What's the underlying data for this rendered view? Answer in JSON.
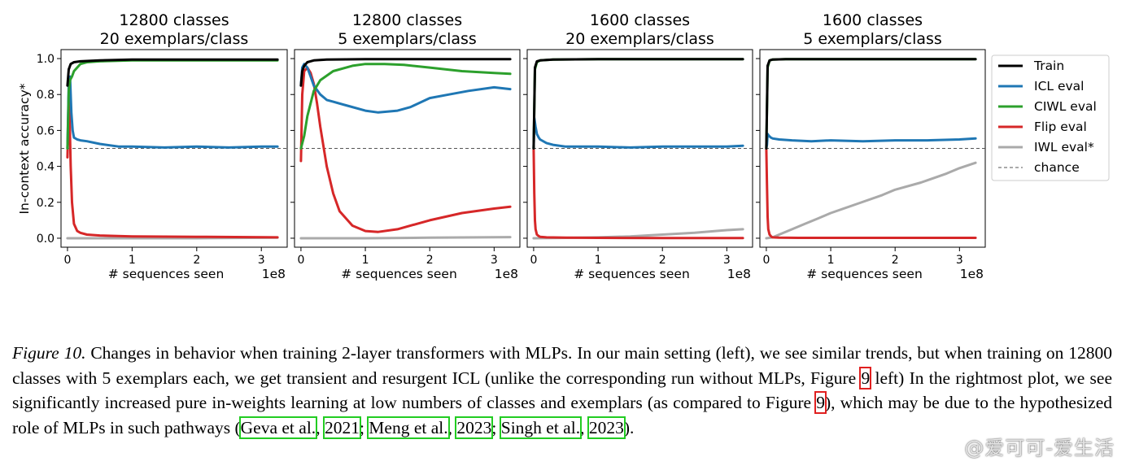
{
  "chart_data": [
    {
      "type": "line",
      "title": [
        "12800 classes",
        "20 exemplars/class"
      ],
      "xlabel": "# sequences seen",
      "x_offset_label": "1e8",
      "ylabel": "In-context accuracy*",
      "xlim": [
        -0.1,
        3.4
      ],
      "ylim": [
        -0.05,
        1.05
      ],
      "xticks": [
        "0",
        "1",
        "2",
        "3"
      ],
      "yticks": [
        "0.0",
        "0.2",
        "0.4",
        "0.6",
        "0.8",
        "1.0"
      ],
      "chance": 0.5,
      "series": [
        {
          "name": "Train",
          "x": [
            0.0,
            0.02,
            0.05,
            0.1,
            0.2,
            0.5,
            1.0,
            2.0,
            3.0,
            3.25
          ],
          "y": [
            0.85,
            0.94,
            0.97,
            0.98,
            0.985,
            0.99,
            0.995,
            0.995,
            0.995,
            0.995
          ]
        },
        {
          "name": "ICL eval",
          "x": [
            0.0,
            0.02,
            0.04,
            0.06,
            0.08,
            0.1,
            0.15,
            0.2,
            0.3,
            0.5,
            0.8,
            1.0,
            1.5,
            2.0,
            2.5,
            3.0,
            3.25
          ],
          "y": [
            0.5,
            0.86,
            0.9,
            0.7,
            0.6,
            0.56,
            0.55,
            0.545,
            0.54,
            0.525,
            0.51,
            0.51,
            0.505,
            0.51,
            0.505,
            0.51,
            0.51
          ]
        },
        {
          "name": "CIWL eval",
          "x": [
            0.0,
            0.02,
            0.04,
            0.07,
            0.1,
            0.2,
            0.3,
            0.5,
            1.0,
            2.0,
            3.0,
            3.25
          ],
          "y": [
            0.5,
            0.82,
            0.88,
            0.9,
            0.93,
            0.97,
            0.98,
            0.985,
            0.99,
            0.99,
            0.99,
            0.99
          ]
        },
        {
          "name": "Flip eval",
          "x": [
            0.0,
            0.01,
            0.02,
            0.03,
            0.05,
            0.07,
            0.1,
            0.15,
            0.2,
            0.3,
            0.5,
            1.0,
            2.0,
            3.25
          ],
          "y": [
            0.45,
            0.6,
            0.8,
            0.72,
            0.4,
            0.2,
            0.08,
            0.04,
            0.03,
            0.02,
            0.015,
            0.01,
            0.008,
            0.005
          ]
        },
        {
          "name": "IWL eval*",
          "x": [
            0.0,
            1.0,
            2.0,
            3.25
          ],
          "y": [
            0.0,
            0.0,
            0.0,
            0.003
          ]
        }
      ]
    },
    {
      "type": "line",
      "title": [
        "12800 classes",
        "5 exemplars/class"
      ],
      "xlabel": "# sequences seen",
      "x_offset_label": "1e8",
      "xlim": [
        -0.1,
        3.4
      ],
      "ylim": [
        -0.05,
        1.05
      ],
      "xticks": [
        "0",
        "1",
        "2",
        "3"
      ],
      "chance": 0.5,
      "series": [
        {
          "name": "Train",
          "x": [
            0.0,
            0.02,
            0.05,
            0.1,
            0.2,
            0.4,
            1.0,
            2.0,
            3.0,
            3.25
          ],
          "y": [
            0.85,
            0.93,
            0.96,
            0.98,
            0.99,
            0.995,
            0.997,
            0.997,
            0.997,
            0.997
          ]
        },
        {
          "name": "ICL eval",
          "x": [
            0.0,
            0.02,
            0.05,
            0.1,
            0.15,
            0.2,
            0.3,
            0.4,
            0.5,
            0.7,
            1.0,
            1.2,
            1.5,
            1.7,
            2.0,
            2.3,
            2.6,
            3.0,
            3.25
          ],
          "y": [
            0.85,
            0.95,
            0.97,
            0.95,
            0.9,
            0.85,
            0.8,
            0.77,
            0.76,
            0.74,
            0.71,
            0.7,
            0.71,
            0.73,
            0.78,
            0.8,
            0.82,
            0.84,
            0.83
          ]
        },
        {
          "name": "CIWL eval",
          "x": [
            0.0,
            0.05,
            0.1,
            0.2,
            0.3,
            0.5,
            0.8,
            1.0,
            1.3,
            1.6,
            2.0,
            2.5,
            3.0,
            3.25
          ],
          "y": [
            0.5,
            0.57,
            0.68,
            0.82,
            0.88,
            0.93,
            0.96,
            0.97,
            0.97,
            0.965,
            0.95,
            0.93,
            0.92,
            0.915
          ]
        },
        {
          "name": "Flip eval",
          "x": [
            0.0,
            0.02,
            0.05,
            0.1,
            0.15,
            0.2,
            0.25,
            0.3,
            0.4,
            0.5,
            0.6,
            0.8,
            1.0,
            1.2,
            1.5,
            2.0,
            2.5,
            3.0,
            3.25
          ],
          "y": [
            0.43,
            0.8,
            0.93,
            0.95,
            0.92,
            0.86,
            0.75,
            0.62,
            0.4,
            0.25,
            0.15,
            0.07,
            0.04,
            0.035,
            0.05,
            0.1,
            0.14,
            0.165,
            0.175
          ]
        },
        {
          "name": "IWL eval*",
          "x": [
            0.0,
            1.0,
            2.0,
            3.25
          ],
          "y": [
            0.0,
            0.0,
            0.003,
            0.006
          ]
        }
      ]
    },
    {
      "type": "line",
      "title": [
        "1600 classes",
        "20 exemplars/class"
      ],
      "xlabel": "# sequences seen",
      "x_offset_label": "1e8",
      "xlim": [
        -0.1,
        3.4
      ],
      "ylim": [
        -0.05,
        1.05
      ],
      "xticks": [
        "0",
        "1",
        "2",
        "3"
      ],
      "chance": 0.5,
      "series": [
        {
          "name": "Train",
          "x": [
            0.0,
            0.02,
            0.05,
            0.1,
            0.3,
            1.0,
            2.0,
            3.25
          ],
          "y": [
            0.5,
            0.95,
            0.985,
            0.99,
            0.995,
            0.997,
            0.997,
            0.997
          ]
        },
        {
          "name": "ICL eval",
          "x": [
            0.0,
            0.01,
            0.03,
            0.05,
            0.08,
            0.1,
            0.2,
            0.3,
            0.5,
            1.0,
            1.5,
            2.0,
            2.5,
            3.0,
            3.25
          ],
          "y": [
            0.5,
            0.67,
            0.62,
            0.58,
            0.56,
            0.55,
            0.53,
            0.52,
            0.51,
            0.51,
            0.505,
            0.51,
            0.51,
            0.51,
            0.515
          ]
        },
        {
          "name": "CIWL eval",
          "x": [
            0.0,
            0.02,
            0.05,
            0.1,
            0.3,
            1.0,
            2.0,
            3.25
          ],
          "y": [
            0.5,
            0.94,
            0.98,
            0.99,
            0.995,
            0.997,
            0.997,
            0.997
          ]
        },
        {
          "name": "Flip eval",
          "x": [
            0.0,
            0.01,
            0.02,
            0.03,
            0.05,
            0.08,
            0.1,
            0.2,
            0.5,
            1.0,
            2.0,
            3.25
          ],
          "y": [
            0.5,
            0.25,
            0.1,
            0.05,
            0.02,
            0.012,
            0.008,
            0.005,
            0.003,
            0.002,
            0.001,
            0.001
          ]
        },
        {
          "name": "IWL eval*",
          "x": [
            0.0,
            0.5,
            1.0,
            1.5,
            2.0,
            2.5,
            3.0,
            3.25
          ],
          "y": [
            0.0,
            0.002,
            0.005,
            0.01,
            0.02,
            0.03,
            0.045,
            0.05
          ]
        }
      ]
    },
    {
      "type": "line",
      "title": [
        "1600 classes",
        "5 exemplars/class"
      ],
      "xlabel": "# sequences seen",
      "x_offset_label": "1e8",
      "xlim": [
        -0.1,
        3.4
      ],
      "ylim": [
        -0.05,
        1.05
      ],
      "xticks": [
        "0",
        "1",
        "2",
        "3"
      ],
      "chance": 0.5,
      "series": [
        {
          "name": "Train",
          "x": [
            0.0,
            0.02,
            0.05,
            0.1,
            0.3,
            1.0,
            2.0,
            3.25
          ],
          "y": [
            0.5,
            0.96,
            0.99,
            0.995,
            0.997,
            0.997,
            0.997,
            0.997
          ]
        },
        {
          "name": "ICL eval",
          "x": [
            0.0,
            0.01,
            0.02,
            0.04,
            0.07,
            0.1,
            0.2,
            0.4,
            0.7,
            1.0,
            1.5,
            2.0,
            2.5,
            3.0,
            3.25
          ],
          "y": [
            0.5,
            0.52,
            0.58,
            0.57,
            0.56,
            0.555,
            0.55,
            0.545,
            0.54,
            0.545,
            0.54,
            0.545,
            0.545,
            0.55,
            0.555
          ]
        },
        {
          "name": "CIWL eval",
          "x": [
            0.0,
            0.02,
            0.05,
            0.1,
            0.3,
            1.0,
            2.0,
            3.25
          ],
          "y": [
            0.5,
            0.95,
            0.99,
            0.995,
            0.997,
            0.997,
            0.997,
            0.997
          ]
        },
        {
          "name": "Flip eval",
          "x": [
            0.0,
            0.01,
            0.02,
            0.03,
            0.05,
            0.08,
            0.1,
            0.2,
            0.5,
            1.0,
            2.0,
            3.25
          ],
          "y": [
            0.5,
            0.3,
            0.12,
            0.05,
            0.02,
            0.008,
            0.005,
            0.003,
            0.002,
            0.002,
            0.002,
            0.002
          ]
        },
        {
          "name": "IWL eval*",
          "x": [
            0.0,
            0.1,
            0.2,
            0.4,
            0.6,
            0.8,
            1.0,
            1.4,
            1.8,
            2.0,
            2.4,
            2.8,
            3.0,
            3.25
          ],
          "y": [
            0.0,
            0.005,
            0.02,
            0.05,
            0.08,
            0.11,
            0.14,
            0.19,
            0.24,
            0.27,
            0.31,
            0.36,
            0.39,
            0.42
          ]
        }
      ]
    }
  ],
  "legend": {
    "placement": "right",
    "entries": [
      {
        "label": "Train",
        "color": "#000000",
        "style": "solid"
      },
      {
        "label": "ICL eval",
        "color": "#1f77b4",
        "style": "solid"
      },
      {
        "label": "CIWL eval",
        "color": "#2ca02c",
        "style": "solid"
      },
      {
        "label": "Flip eval",
        "color": "#d62728",
        "style": "solid"
      },
      {
        "label": "IWL eval*",
        "color": "#aaaaaa",
        "style": "solid"
      },
      {
        "label": "chance",
        "color": "#555555",
        "style": "dashed"
      }
    ]
  },
  "caption": {
    "label": "Figure 10.",
    "t1": " Changes in behavior when training 2-layer transformers with MLPs. In our main setting (left), we see similar trends, but when training on 12800 classes with 5 exemplars each, we get transient and resurgent ICL (unlike the corresponding run without MLPs, Figure ",
    "ref1": "9",
    "t2": " left) In the rightmost plot, we see significantly increased pure in-weights learning at low numbers of classes and exemplars (as compared to Figure ",
    "ref2": "9",
    "t3": "), which may be due to the hypothesized role of MLPs in such pathways (",
    "cite1": "Geva et al.",
    "t4": ", ",
    "cite2": "2021",
    "t5": "; ",
    "cite3": "Meng et al.",
    "t6": ", ",
    "cite4": "2023",
    "t7": "; ",
    "cite5": "Singh et al.",
    "t8": ", ",
    "cite6": "2023",
    "t9": ")."
  },
  "watermark": "@爱可可-爱生活"
}
